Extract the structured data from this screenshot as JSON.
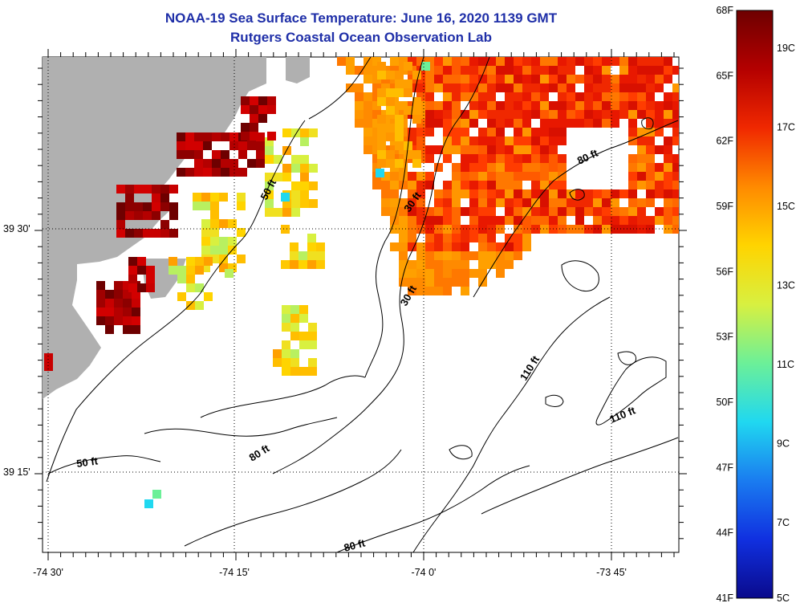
{
  "title": "NOAA-19 Sea Surface Temperature:  June 16, 2020 1139 GMT",
  "subtitle": "Rutgers Coastal Ocean Observation Lab",
  "map": {
    "lon_ticks": [
      "-74 30'",
      "-74 15'",
      "-74 0'",
      "-73 45'"
    ],
    "lat_ticks": [
      "39 30'",
      "39 15'"
    ],
    "land_color": "#b0b0b0",
    "cloud_color": "#ffffff",
    "contour_labels": [
      {
        "text": "50 ft",
        "id": "c50a"
      },
      {
        "text": "30 ft",
        "id": "c30a"
      },
      {
        "text": "30 ft",
        "id": "c30b"
      },
      {
        "text": "80 ft",
        "id": "c80a"
      },
      {
        "text": "110 ft",
        "id": "c110a"
      },
      {
        "text": "110 ft",
        "id": "c110b"
      },
      {
        "text": "50 ft",
        "id": "c50b"
      },
      {
        "text": "80 ft",
        "id": "c80b"
      },
      {
        "text": "80 ft",
        "id": "c80c"
      }
    ]
  },
  "colorbar": {
    "f_labels": [
      "68F",
      "65F",
      "62F",
      "59F",
      "56F",
      "53F",
      "50F",
      "47F",
      "44F",
      "41F"
    ],
    "c_labels": [
      "19C",
      "17C",
      "15C",
      "13C",
      "11C",
      "9C",
      "7C",
      "5C"
    ],
    "colors": [
      "#0a0a8c",
      "#1030e0",
      "#1a7cf0",
      "#20d8f0",
      "#6cf098",
      "#d8f040",
      "#ffd400",
      "#ff8a00",
      "#f02800",
      "#b40000",
      "#6e0000"
    ]
  }
}
